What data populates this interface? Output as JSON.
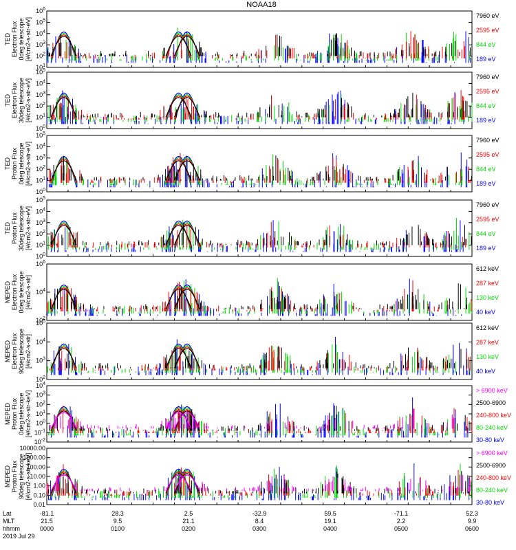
{
  "title": "NOAA18",
  "colors": {
    "black": "#000000",
    "red": "#ff0000",
    "green": "#00dd00",
    "blue": "#0000ff",
    "magenta": "#ff00ff"
  },
  "time_axis": {
    "row_labels": [
      "Lat",
      "MLT",
      "hhmm"
    ],
    "date": "2019 Jul 29",
    "ticks": [
      {
        "lat": "-81.1",
        "mlt": "21.5",
        "hhmm": "0000"
      },
      {
        "lat": "28.3",
        "mlt": "9.5",
        "hhmm": "0100"
      },
      {
        "lat": "2.5",
        "mlt": "21.1",
        "hhmm": "0200"
      },
      {
        "lat": "-32.9",
        "mlt": "8.4",
        "hhmm": "0300"
      },
      {
        "lat": "59.5",
        "mlt": "19.1",
        "hhmm": "0400"
      },
      {
        "lat": "-71.1",
        "mlt": "2.2",
        "hhmm": "0500"
      },
      {
        "lat": "52.3",
        "mlt": "9.9",
        "hhmm": "0600"
      }
    ]
  },
  "chart_data": [
    {
      "type": "scatter",
      "ylabel": [
        "TED",
        "Electron Flux",
        "0deg telescope",
        "[#/cm2-s-str-eV]"
      ],
      "ylog": [
        1,
        6
      ],
      "ytick_labels": [
        "10^1",
        "10^2",
        "10^3",
        "10^4",
        "10^5",
        "10^6"
      ],
      "legend": [
        {
          "name": "7960 eV",
          "color": "black"
        },
        {
          "name": "2595 eV",
          "color": "red"
        },
        {
          "name": "844 eV",
          "color": "green"
        },
        {
          "name": "189 eV",
          "color": "blue"
        }
      ]
    },
    {
      "type": "scatter",
      "ylabel": [
        "TED",
        "Electron Flux",
        "30deg telescope",
        "[#/cm2-s-str-eV]"
      ],
      "ylog": [
        0,
        5
      ],
      "ytick_labels": [
        "10^0",
        "10^1",
        "10^2",
        "10^3",
        "10^4",
        "10^5"
      ],
      "legend": [
        {
          "name": "7960 eV",
          "color": "black"
        },
        {
          "name": "2595 eV",
          "color": "red"
        },
        {
          "name": "844 eV",
          "color": "green"
        },
        {
          "name": "189 eV",
          "color": "blue"
        }
      ]
    },
    {
      "type": "scatter",
      "ylabel": [
        "TED",
        "Proton Flux",
        "0deg telescope",
        "[#/cm2-s-str-eV]"
      ],
      "ylog": [
        0,
        5
      ],
      "ytick_labels": [
        "10^0",
        "10^1",
        "10^2",
        "10^3",
        "10^4",
        "10^5"
      ],
      "legend": [
        {
          "name": "7960 eV",
          "color": "black"
        },
        {
          "name": "2595 eV",
          "color": "red"
        },
        {
          "name": "844 eV",
          "color": "green"
        },
        {
          "name": "189 eV",
          "color": "blue"
        }
      ]
    },
    {
      "type": "scatter",
      "ylabel": [
        "TED",
        "Proton Flux",
        "30deg telescope",
        "[#/cm2-s-str-eV]"
      ],
      "ylog": [
        0,
        5
      ],
      "ytick_labels": [
        "10^0",
        "10^1",
        "10^2",
        "10^3",
        "10^4",
        "10^5"
      ],
      "legend": [
        {
          "name": "7960 eV",
          "color": "black"
        },
        {
          "name": "2595 eV",
          "color": "red"
        },
        {
          "name": "844 eV",
          "color": "green"
        },
        {
          "name": "189 eV",
          "color": "blue"
        }
      ]
    },
    {
      "type": "scatter",
      "ylabel": [
        "MEPED",
        "Electron Flux",
        "0deg telescope",
        "[#/cm2-s-str]"
      ],
      "ylog": [
        1,
        6
      ],
      "ytick_labels": [
        "10^2",
        "10^4",
        "10^6"
      ],
      "legend": [
        {
          "name": "612 keV",
          "color": "black"
        },
        {
          "name": "287 keV",
          "color": "red"
        },
        {
          "name": "130 keV",
          "color": "green"
        },
        {
          "name": "40 keV",
          "color": "blue"
        }
      ]
    },
    {
      "type": "scatter",
      "ylabel": [
        "MEPED",
        "Electron Flux",
        "90deg telescope",
        "[#/cm2-s-str]"
      ],
      "ylog": [
        2,
        6
      ],
      "ytick_labels": [
        "10^2",
        "10^3",
        "10^4",
        "10^5"
      ],
      "legend": [
        {
          "name": "612 keV",
          "color": "black"
        },
        {
          "name": "287 keV",
          "color": "red"
        },
        {
          "name": "130 keV",
          "color": "green"
        },
        {
          "name": "40 keV",
          "color": "blue"
        }
      ]
    },
    {
      "type": "scatter",
      "ylabel": [
        "MEPED",
        "Proton Flux",
        "0deg telescope",
        "[#/cm2-s-str-keV]"
      ],
      "ylog": [
        -2,
        4
      ],
      "ytick_labels": [
        "10^-2",
        "10^-1",
        "10^0",
        "10^1",
        "10^2",
        "10^3",
        "10^4"
      ],
      "legend": [
        {
          "name": "> 6900 keV",
          "color": "magenta"
        },
        {
          "name": "2500-6900",
          "color": "black"
        },
        {
          "name": "240-800 keV",
          "color": "red"
        },
        {
          "name": "80-240 keV",
          "color": "green"
        },
        {
          "name": "30-80 keV",
          "color": "blue"
        }
      ]
    },
    {
      "type": "scatter",
      "ylabel": [
        "MEPED",
        "Proton Flux",
        "90deg telescope",
        "[#/cm2-s-str-keV]"
      ],
      "ylog": [
        -2,
        4
      ],
      "ytick_labels": [
        "0.01",
        "0.10",
        "1.00",
        "10.00",
        "100.00",
        "1000.00",
        "10000.00"
      ],
      "legend": [
        {
          "name": "> 6900 keV",
          "color": "magenta"
        },
        {
          "name": "2500-6900",
          "color": "black"
        },
        {
          "name": "240-800 keV",
          "color": "red"
        },
        {
          "name": "80-240 keV",
          "color": "green"
        },
        {
          "name": "30-80 keV",
          "color": "blue"
        }
      ]
    }
  ]
}
